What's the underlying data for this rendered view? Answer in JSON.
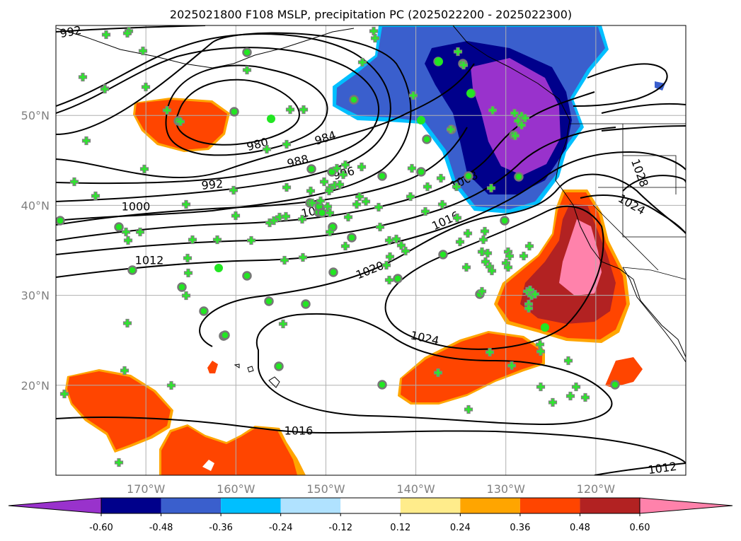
{
  "title": "2025021800 F108 MSLP, precipitation PC (2025022200 - 2025022300)",
  "map": {
    "lon_range": [
      -180,
      -110
    ],
    "lat_range": [
      10,
      60
    ],
    "lon_ticks": [
      {
        "value": -170,
        "label": "170°W"
      },
      {
        "value": -160,
        "label": "160°W"
      },
      {
        "value": -150,
        "label": "150°W"
      },
      {
        "value": -140,
        "label": "140°W"
      },
      {
        "value": -130,
        "label": "130°W"
      },
      {
        "value": -120,
        "label": "120°W"
      }
    ],
    "lat_ticks": [
      {
        "value": 20,
        "label": "20°N"
      },
      {
        "value": 30,
        "label": "30°N"
      },
      {
        "value": 40,
        "label": "40°N"
      },
      {
        "value": 50,
        "label": "50°N"
      }
    ],
    "grid": true,
    "isobar_labels": [
      "992",
      "980",
      "984",
      "988",
      "992",
      "996",
      "1000",
      "1004",
      "1008",
      "1012",
      "1016",
      "1020",
      "1024",
      "1028",
      "1024",
      "1016",
      "1012"
    ],
    "marker_colors": {
      "plus": "#2ee62e",
      "circle_fill": "#22e622",
      "circle_edge": "#777777"
    }
  },
  "colorbar": {
    "levels": [
      "-0.60",
      "-0.48",
      "-0.36",
      "-0.24",
      "-0.12",
      "0.12",
      "0.24",
      "0.36",
      "0.48",
      "0.60"
    ],
    "colors": [
      "#9932cc",
      "#00008b",
      "#3a5fcd",
      "#00bfff",
      "#b0e2ff",
      "#ffffff",
      "#ffec8b",
      "#ffa500",
      "#ff4500",
      "#b22222",
      "#ff82ab"
    ],
    "extend": "both"
  }
}
